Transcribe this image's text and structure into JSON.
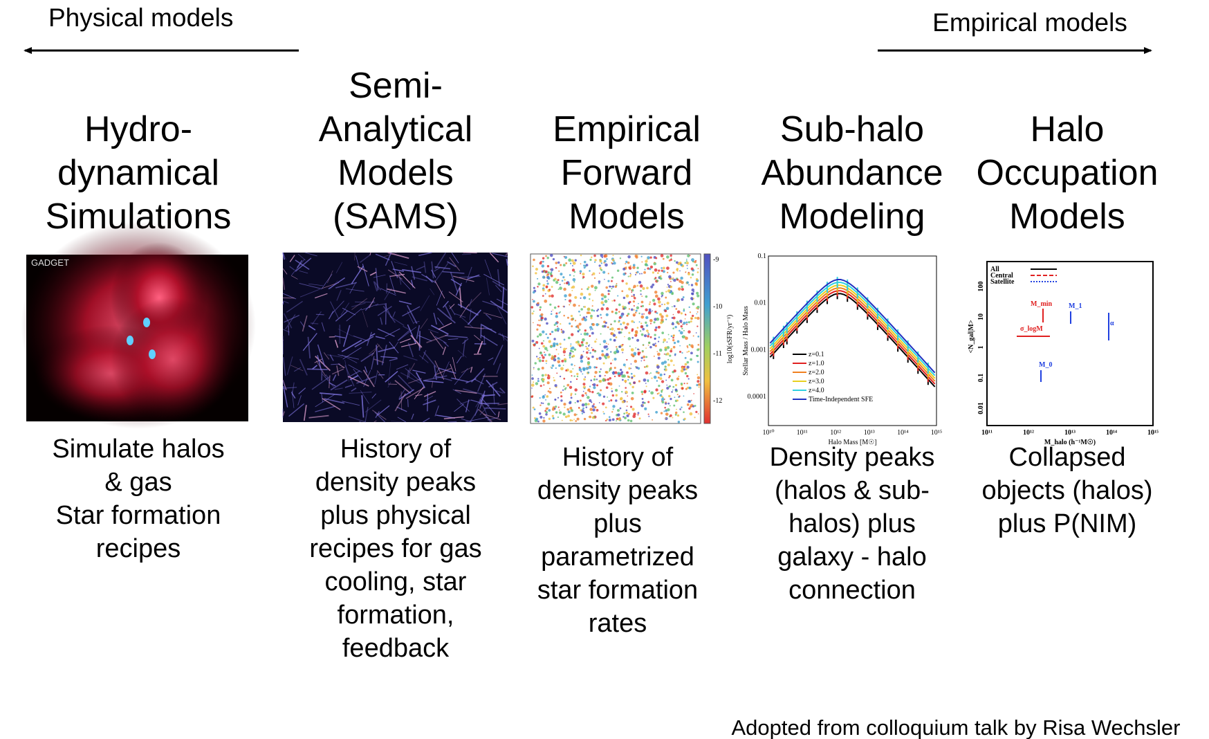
{
  "arrows": {
    "left": "Physical models",
    "right": "Empirical models"
  },
  "columns": [
    {
      "title": [
        "Hydro-",
        "dynamical",
        "Simulations"
      ],
      "figure": {
        "label": "GADGET"
      },
      "description": [
        "Simulate halos",
        "& gas",
        "Star formation",
        "recipes"
      ]
    },
    {
      "title": [
        "Semi-",
        "Analytical",
        "Models",
        "(SAMS)"
      ],
      "description": [
        "History of",
        "density peaks",
        "plus physical",
        "recipes for gas",
        "cooling, star",
        "formation,",
        "feedback"
      ]
    },
    {
      "title": [
        "Empirical",
        "Forward",
        "Models"
      ],
      "figure": {
        "colorbar_label": "log10(sSFR/yr⁻¹)",
        "colorbar_ticks": [
          "-9",
          "-10",
          "-11",
          "-12"
        ]
      },
      "description": [
        "History of",
        "density peaks",
        "plus",
        "parametrized",
        "star formation",
        "rates"
      ]
    },
    {
      "title": [
        "Sub-halo",
        "Abundance",
        "Modeling"
      ],
      "figure": {
        "ylabel": "Stellar Mass / Halo Mass",
        "xlabel": "Halo Mass [M☉]",
        "yticks": [
          "0.1",
          "0.01",
          "0.001",
          "0.0001"
        ],
        "xticks": [
          "10¹⁰",
          "10¹¹",
          "10¹²",
          "10¹³",
          "10¹⁴",
          "10¹⁵"
        ],
        "legend": [
          {
            "label": "z=0.1",
            "color": "#000000"
          },
          {
            "label": "z=1.0",
            "color": "#e02020"
          },
          {
            "label": "z=2.0",
            "color": "#f08020"
          },
          {
            "label": "z=3.0",
            "color": "#e8d020"
          },
          {
            "label": "z=4.0",
            "color": "#30d0e0"
          },
          {
            "label": "Time-Independent SFE",
            "color": "#2030c0"
          }
        ]
      },
      "description": [
        "Density peaks",
        "(halos & sub-",
        "halos) plus",
        "galaxy - halo",
        "connection"
      ]
    },
    {
      "title": [
        "Halo",
        "Occupation",
        "Models"
      ],
      "figure": {
        "ylabel": "<N_gal|M>",
        "xlabel": "M_halo (h⁻¹M☉)",
        "yticks": [
          "100",
          "10",
          "1",
          "0.1",
          "0.01"
        ],
        "xticks": [
          "10¹¹",
          "10¹²",
          "10¹³",
          "10¹⁴",
          "10¹⁵"
        ],
        "legend": [
          {
            "label": "All",
            "color": "#000000"
          },
          {
            "label": "Central",
            "color": "#e02020"
          },
          {
            "label": "Satellite",
            "color": "#2040e0"
          }
        ],
        "annotations": [
          "M_min",
          "σ_logM",
          "M_1",
          "M_0",
          "α"
        ]
      },
      "description": [
        "Collapsed",
        "objects (halos)",
        "plus P(NIM)"
      ]
    }
  ],
  "credit": "Adopted from colloquium talk by Risa Wechsler"
}
